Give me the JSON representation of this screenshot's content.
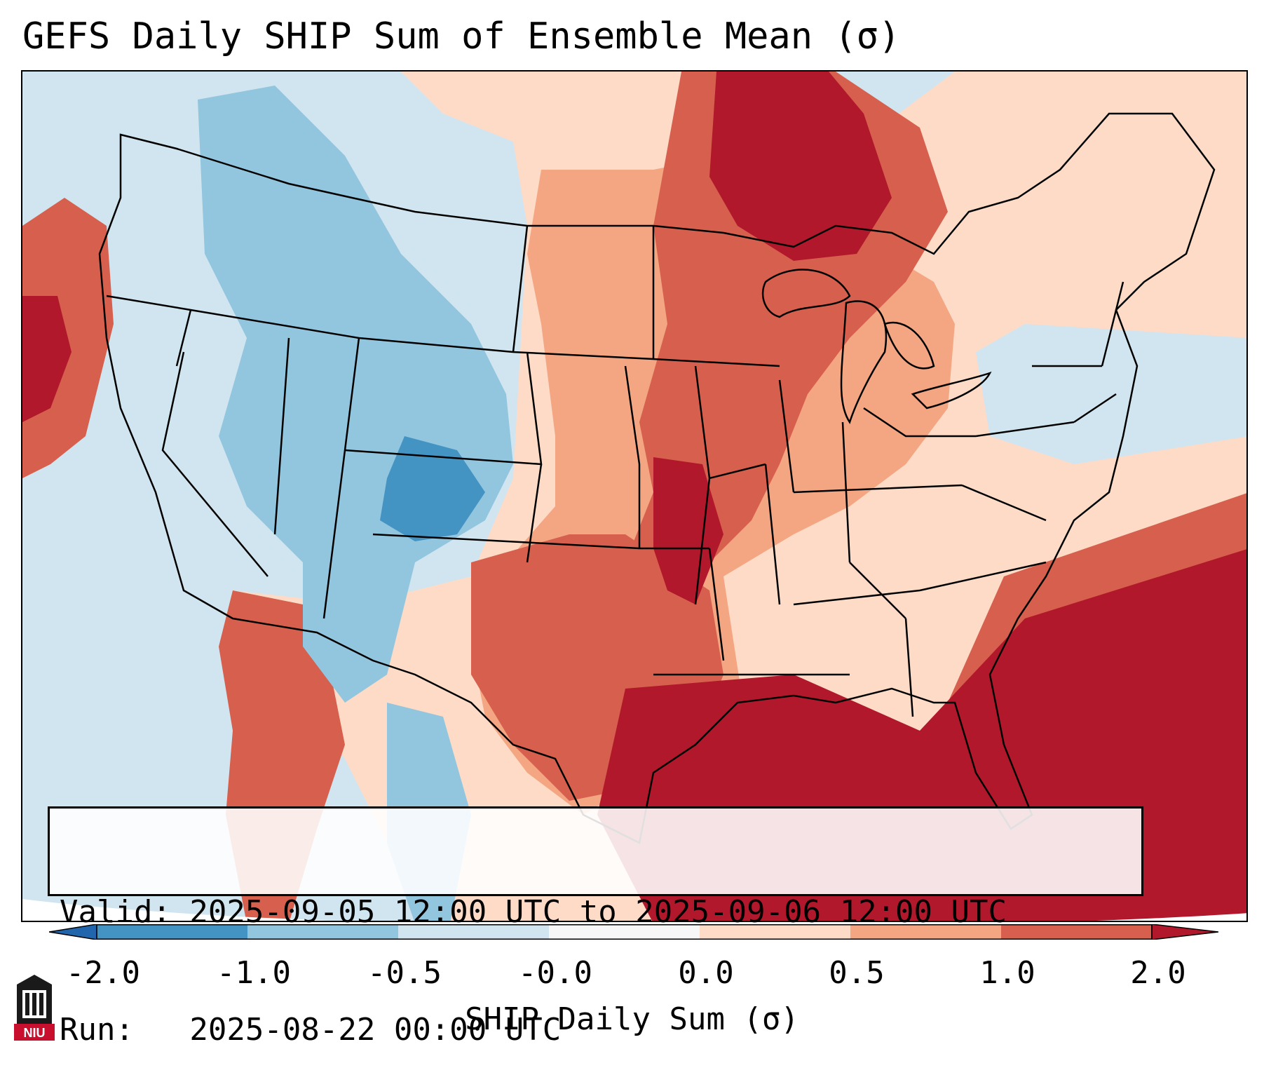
{
  "title": "GEFS Daily SHIP Sum of Ensemble Mean (σ)",
  "info": {
    "valid": "Valid: 2025-09-05 12:00 UTC to 2025-09-06 12:00 UTC",
    "run": "Run:   2025-08-22 00:00 UTC"
  },
  "colorbar": {
    "label": "SHIP Daily Sum (σ)",
    "ticks": [
      "-2.0",
      "-1.0",
      "-0.5",
      "-0.0",
      "0.0",
      "0.5",
      "1.0",
      "2.0"
    ],
    "colors": [
      "#2166ac",
      "#4393c3",
      "#92c5de",
      "#d1e5f0",
      "#f7f7f7",
      "#fddbc7",
      "#f4a582",
      "#d6604d",
      "#b2182b"
    ]
  },
  "logo": {
    "text": "NIU"
  },
  "map": {
    "region": "Contiguous United States",
    "variable": "SHIP daily sum, ensemble mean anomaly"
  }
}
